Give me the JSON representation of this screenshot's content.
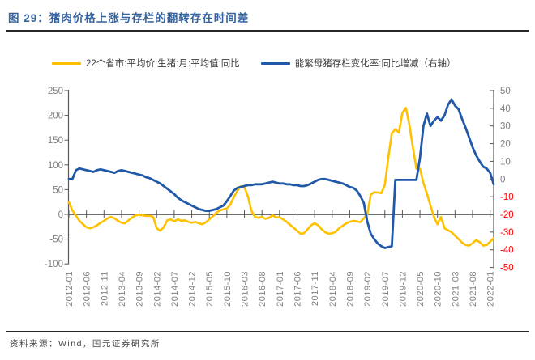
{
  "page": {
    "title": "图 29：猪肉价格上涨与存栏的翻转存在时间差",
    "source": "资料来源：Wind，国元证券研究所"
  },
  "colors": {
    "title_blue": "#33629F",
    "series_yellow": "#FFC000",
    "series_blue": "#2158A8",
    "axis_text_gray": "#808080",
    "axis_text_negative_red": "#FF0000",
    "axis_line_gray": "#595959",
    "divider_dark": "#262626"
  },
  "chart_data": {
    "type": "line",
    "frequency": "monthly",
    "x_start": "2012-01",
    "x_end": "2022-02",
    "x_tick_labels": [
      "2012-01",
      "2012-06",
      "2012-11",
      "2013-04",
      "2013-09",
      "2014-02",
      "2014-07",
      "2014-12",
      "2015-05",
      "2015-10",
      "2016-03",
      "2016-08",
      "2017-01",
      "2017-06",
      "2017-11",
      "2018-04",
      "2018-09",
      "2019-02",
      "2019-07",
      "2019-12",
      "2020-05",
      "2020-10",
      "2021-03",
      "2021-08",
      "2022-01"
    ],
    "x_tick_step_months": 5,
    "left_axis": {
      "range": [
        -100,
        250
      ],
      "ticks": [
        250,
        200,
        150,
        100,
        50,
        0,
        -50,
        -100
      ]
    },
    "right_axis": {
      "range": [
        -50,
        50
      ],
      "ticks": [
        50,
        40,
        30,
        20,
        10,
        0,
        -10,
        -20,
        -30,
        -40,
        -50
      ]
    },
    "grid": false,
    "legend_position": "top",
    "series": [
      {
        "name": "22个省市:平均价:生猪:月:平均值:同比",
        "axis": "left",
        "color": "#FFC000",
        "values": [
          25,
          8,
          -3,
          -13,
          -20,
          -26,
          -28,
          -26,
          -22,
          -17,
          -13,
          -8,
          -5,
          -8,
          -13,
          -17,
          -18,
          -12,
          -6,
          -2,
          -1,
          -2,
          -3,
          -3,
          -5,
          -28,
          -33,
          -26,
          -12,
          -10,
          -14,
          -10,
          -13,
          -12,
          -15,
          -17,
          -15,
          -18,
          -20,
          -16,
          -10,
          -4,
          3,
          8,
          10,
          12,
          20,
          35,
          48,
          57,
          55,
          36,
          7,
          -5,
          -7,
          -5,
          -9,
          -7,
          -2,
          -6,
          -6,
          -10,
          -15,
          -21,
          -27,
          -33,
          -39,
          -38,
          -30,
          -22,
          -18,
          -22,
          -30,
          -36,
          -39,
          -38,
          -35,
          -28,
          -23,
          -18,
          -15,
          -13,
          -14,
          -16,
          -8,
          0,
          40,
          45,
          44,
          43,
          60,
          115,
          164,
          172,
          165,
          205,
          215,
          180,
          135,
          92,
          92,
          63,
          42,
          18,
          -5,
          -20,
          -5,
          -28,
          -32,
          -36,
          -43,
          -50,
          -57,
          -62,
          -63,
          -58,
          -52,
          -56,
          -63,
          -62,
          -55,
          -48
        ]
      },
      {
        "name": "能繁母猪存栏变化率:同比增减（右轴）",
        "axis": "right",
        "color": "#2158A8",
        "values": [
          0,
          0,
          5,
          6,
          5.5,
          5,
          4.5,
          4,
          5,
          5.5,
          5,
          4.5,
          4,
          3.5,
          4.5,
          5,
          4.5,
          4,
          3.5,
          3,
          2.5,
          2,
          1,
          0.5,
          -0.5,
          -1.5,
          -2.5,
          -4,
          -5.5,
          -7,
          -8.5,
          -10.5,
          -12,
          -13,
          -14,
          -15,
          -16,
          -17,
          -17.5,
          -18,
          -18,
          -17.5,
          -17,
          -16,
          -15,
          -12.5,
          -9.5,
          -6.5,
          -5,
          -4.5,
          -4,
          -3.5,
          -3.5,
          -3,
          -3,
          -3,
          -2.5,
          -2,
          -1.5,
          -2,
          -2.5,
          -2.5,
          -3,
          -3,
          -3.5,
          -3.5,
          -4,
          -4,
          -3.5,
          -2.5,
          -1.5,
          -0.5,
          0,
          0,
          -0.5,
          -1,
          -1.5,
          -2,
          -2.5,
          -3.5,
          -4.5,
          -5,
          -6.5,
          -9.5,
          -13.5,
          -24,
          -31,
          -34,
          -36.5,
          -38,
          -39,
          -38.5,
          -38,
          -0.5,
          -0.5,
          -0.5,
          -0.5,
          -0.5,
          -0.5,
          -0.5,
          12,
          30,
          37,
          30,
          33,
          35,
          33,
          36,
          42,
          45,
          41.5,
          39.5,
          34,
          29,
          23.5,
          18,
          13.5,
          10,
          7,
          6,
          3.5,
          -3
        ]
      }
    ]
  }
}
